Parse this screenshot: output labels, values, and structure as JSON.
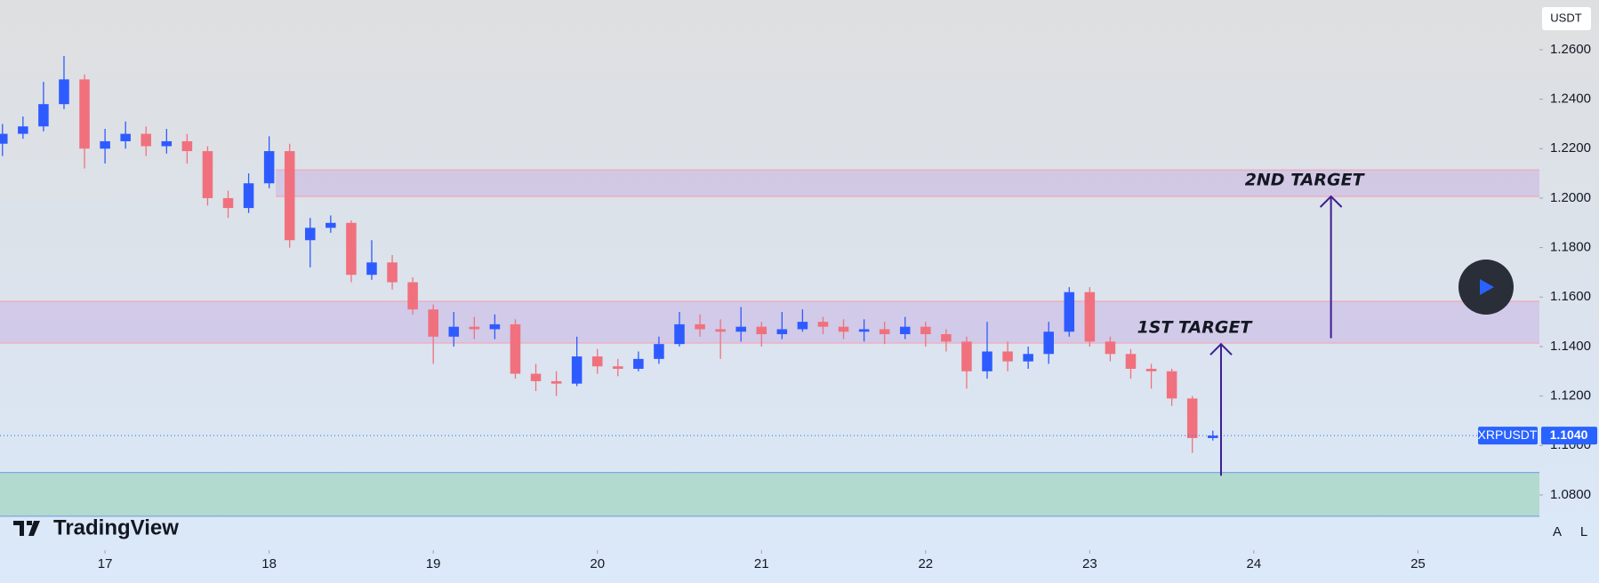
{
  "chart_data": {
    "type": "candlestick",
    "currency": "USDT",
    "watermark": "TradingView",
    "axis_buttons": [
      "A",
      "L"
    ],
    "up_color": "#2e5bff",
    "down_color": "#f0717d",
    "x": [
      16.375,
      16.5,
      16.625,
      16.75,
      16.875,
      17,
      17.125,
      17.25,
      17.375,
      17.5,
      17.625,
      17.75,
      17.875,
      18,
      18.125,
      18.25,
      18.375,
      18.5,
      18.625,
      18.75,
      18.875,
      19,
      19.125,
      19.25,
      19.375,
      19.5,
      19.625,
      19.75,
      19.875,
      20,
      20.125,
      20.25,
      20.375,
      20.5,
      20.625,
      20.75,
      20.875,
      21,
      21.125,
      21.25,
      21.375,
      21.5,
      21.625,
      21.75,
      21.875,
      22,
      22.125,
      22.25,
      22.375,
      22.5,
      22.625,
      22.75,
      22.875,
      23,
      23.125,
      23.25,
      23.375,
      23.5,
      23.625,
      23.75
    ],
    "open": [
      1.222,
      1.226,
      1.229,
      1.238,
      1.248,
      1.22,
      1.223,
      1.226,
      1.221,
      1.223,
      1.219,
      1.2,
      1.196,
      1.206,
      1.219,
      1.183,
      1.188,
      1.19,
      1.169,
      1.174,
      1.166,
      1.155,
      1.144,
      1.148,
      1.147,
      1.149,
      1.129,
      1.126,
      1.125,
      1.136,
      1.132,
      1.131,
      1.135,
      1.141,
      1.149,
      1.147,
      1.146,
      1.148,
      1.145,
      1.147,
      1.15,
      1.148,
      1.146,
      1.147,
      1.145,
      1.148,
      1.145,
      1.142,
      1.13,
      1.138,
      1.134,
      1.137,
      1.146,
      1.162,
      1.142,
      1.137,
      1.131,
      1.13,
      1.119,
      1.103
    ],
    "high": [
      1.23,
      1.233,
      1.247,
      1.2575,
      1.25,
      1.228,
      1.231,
      1.229,
      1.228,
      1.226,
      1.221,
      1.203,
      1.21,
      1.225,
      1.222,
      1.192,
      1.193,
      1.191,
      1.183,
      1.177,
      1.168,
      1.157,
      1.154,
      1.152,
      1.153,
      1.151,
      1.133,
      1.13,
      1.144,
      1.139,
      1.135,
      1.138,
      1.144,
      1.154,
      1.153,
      1.151,
      1.156,
      1.15,
      1.154,
      1.155,
      1.152,
      1.151,
      1.151,
      1.15,
      1.152,
      1.15,
      1.147,
      1.144,
      1.15,
      1.142,
      1.14,
      1.15,
      1.164,
      1.164,
      1.144,
      1.139,
      1.133,
      1.131,
      1.12,
      1.106
    ],
    "low": [
      1.217,
      1.224,
      1.227,
      1.236,
      1.212,
      1.214,
      1.22,
      1.217,
      1.218,
      1.214,
      1.197,
      1.192,
      1.194,
      1.204,
      1.18,
      1.172,
      1.186,
      1.166,
      1.167,
      1.163,
      1.153,
      1.133,
      1.14,
      1.143,
      1.143,
      1.127,
      1.122,
      1.12,
      1.124,
      1.129,
      1.128,
      1.13,
      1.133,
      1.14,
      1.144,
      1.135,
      1.142,
      1.14,
      1.143,
      1.146,
      1.145,
      1.143,
      1.142,
      1.141,
      1.143,
      1.14,
      1.138,
      1.123,
      1.127,
      1.13,
      1.131,
      1.133,
      1.144,
      1.14,
      1.134,
      1.127,
      1.123,
      1.116,
      1.097,
      1.102
    ],
    "close": [
      1.226,
      1.229,
      1.238,
      1.248,
      1.22,
      1.223,
      1.226,
      1.221,
      1.223,
      1.219,
      1.2,
      1.196,
      1.206,
      1.219,
      1.183,
      1.188,
      1.19,
      1.169,
      1.174,
      1.166,
      1.155,
      1.144,
      1.148,
      1.147,
      1.149,
      1.129,
      1.126,
      1.125,
      1.136,
      1.132,
      1.131,
      1.135,
      1.141,
      1.149,
      1.147,
      1.146,
      1.148,
      1.145,
      1.147,
      1.15,
      1.148,
      1.146,
      1.147,
      1.145,
      1.148,
      1.145,
      1.142,
      1.13,
      1.138,
      1.134,
      1.137,
      1.146,
      1.162,
      1.142,
      1.137,
      1.131,
      1.13,
      1.119,
      1.103,
      1.104
    ],
    "xlim": [
      16.36,
      25.74
    ],
    "xticks": [
      17,
      18,
      19,
      20,
      21,
      22,
      23,
      24,
      25
    ],
    "ylim": [
      1.0577,
      1.2801
    ],
    "yticks": [
      {
        "value": 1.08,
        "label": "1.0800"
      },
      {
        "value": 1.1,
        "label": "1.1000"
      },
      {
        "value": 1.12,
        "label": "1.1200"
      },
      {
        "value": 1.14,
        "label": "1.1400"
      },
      {
        "value": 1.16,
        "label": "1.1600"
      },
      {
        "value": 1.18,
        "label": "1.1800"
      },
      {
        "value": 1.2,
        "label": "1.2000"
      },
      {
        "value": 1.22,
        "label": "1.2200"
      },
      {
        "value": 1.24,
        "label": "1.2400"
      },
      {
        "value": 1.26,
        "label": "1.2600"
      }
    ],
    "zones": [
      {
        "from_x": 18.04,
        "low": 1.2007,
        "high": 1.2114,
        "color": "rgba(190,150,220,0.32)",
        "border": "#f2a6b8"
      },
      {
        "low": 1.1414,
        "high": 1.1583,
        "color": "rgba(190,150,220,0.32)",
        "border": "#f2a6b8"
      },
      {
        "low": 1.0714,
        "high": 1.0891,
        "color": "rgba(150,210,180,0.6)",
        "border": "#7fa6e6"
      }
    ],
    "targets": [
      {
        "label": "1ST TARGET",
        "x": 23.8,
        "from": 1.0878,
        "to": 1.141
      },
      {
        "label": "2ND TARGET",
        "x": 24.47,
        "from": 1.1434,
        "to": 1.2007
      }
    ],
    "target_color": "#3d1e94",
    "last_price": {
      "symbol": "XRPUSDT",
      "value": 1.104,
      "label": "1.1040",
      "color": "#2962ff"
    }
  }
}
